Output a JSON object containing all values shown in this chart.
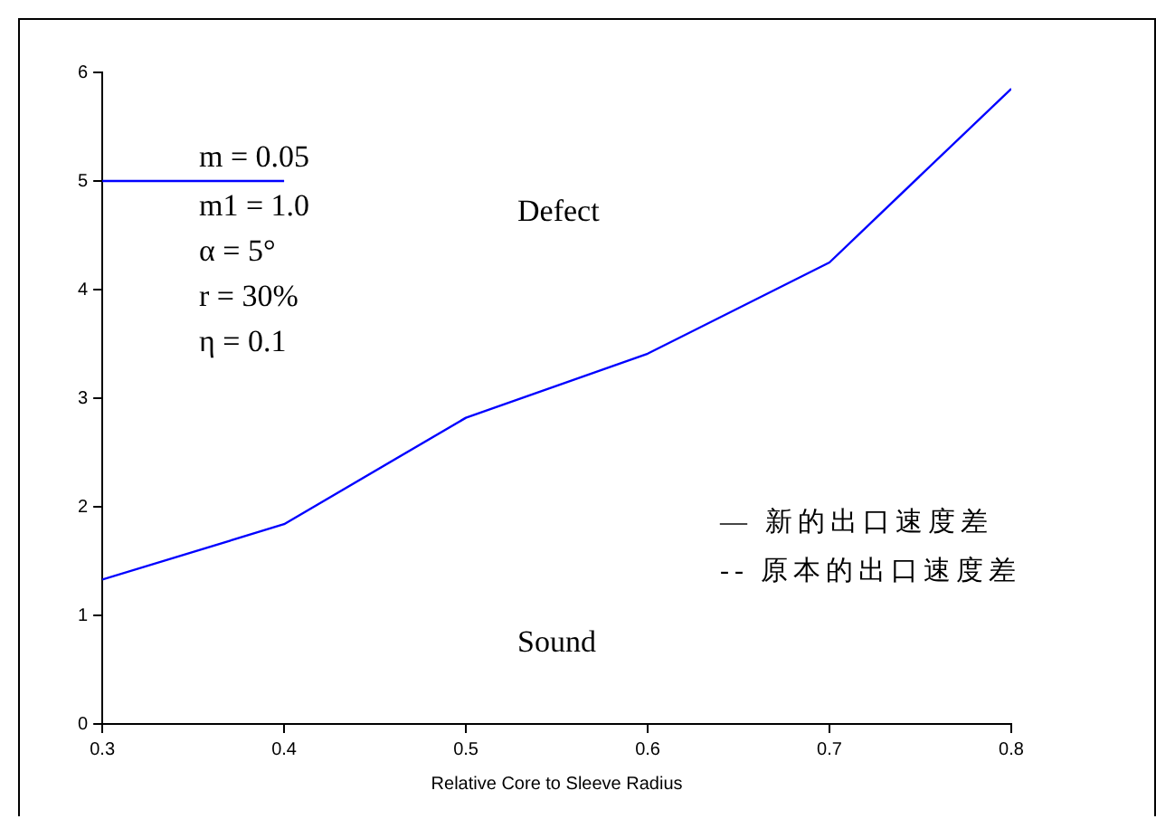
{
  "chart_data": {
    "type": "line",
    "xlabel": "Relative Core to Sleeve Radius",
    "x": [
      0.3,
      0.4,
      0.5,
      0.6,
      0.7,
      0.8
    ],
    "series": [
      {
        "color": "#0000ff",
        "values": [
          1.33,
          1.84,
          2.82,
          3.41,
          4.25,
          5.85
        ]
      },
      {
        "color": "#0000ff",
        "x": [
          0.3,
          0.4
        ],
        "values": [
          5,
          5
        ]
      }
    ],
    "xlim": [
      0.3,
      0.8
    ],
    "xticks": [
      0.3,
      0.4,
      0.5,
      0.6,
      0.7,
      0.8
    ],
    "ylim": [
      0,
      6
    ],
    "yticks": [
      0,
      1,
      2,
      3,
      4,
      5,
      6
    ],
    "grid": false,
    "legend": false,
    "marker": "none",
    "line_style": "solid",
    "annotations": [
      "m = 0.05",
      "m1 = 1.0",
      "α = 5°",
      "r = 30%",
      "η = 0.1",
      "Defect",
      "Sound",
      "—  新的出口速度差",
      "--  原本的出口速度差"
    ]
  }
}
